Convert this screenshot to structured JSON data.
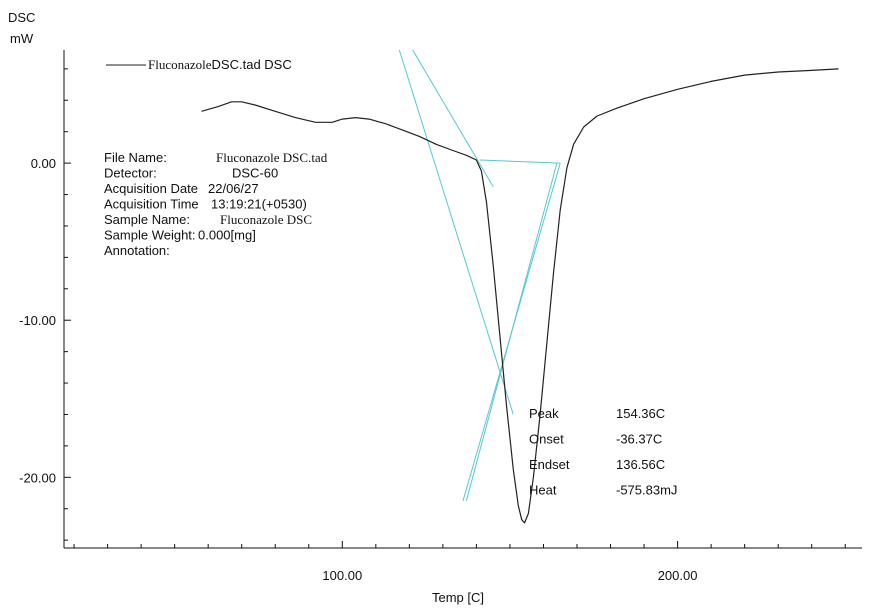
{
  "chart_data": {
    "type": "line",
    "title": "",
    "y_unit_top": "DSC",
    "y_unit_bottom": "mW",
    "xlabel": "Temp [C]",
    "xlim": [
      17,
      255
    ],
    "ylim": [
      -24.5,
      7.2
    ],
    "x_ticks": [
      {
        "value": 100,
        "label": "100.00"
      },
      {
        "value": 200,
        "label": "200.00"
      }
    ],
    "y_ticks": [
      {
        "value": 0,
        "label": "0.00"
      },
      {
        "value": -10,
        "label": "-10.00"
      },
      {
        "value": -20,
        "label": "-20.00"
      }
    ],
    "legend": {
      "series_name_part1": "Fluconazole",
      "series_name_part2": "DSC.tad DSC",
      "placement": "top-left"
    },
    "series": [
      {
        "name": "FluconazoleDSC.tad DSC",
        "color": "#222222",
        "x": [
          58,
          63,
          67,
          70,
          74,
          80,
          86,
          92,
          97,
          100,
          104,
          108,
          113,
          118,
          123,
          128,
          133,
          137,
          140,
          141.5,
          143,
          145,
          147,
          149,
          151,
          152.5,
          153.5,
          154.36,
          155.5,
          157,
          159,
          161,
          163,
          165,
          167,
          169,
          172,
          176,
          182,
          190,
          200,
          210,
          220,
          230,
          240,
          248
        ],
        "y": [
          3.3,
          3.6,
          3.9,
          3.9,
          3.7,
          3.3,
          2.9,
          2.6,
          2.6,
          2.8,
          2.9,
          2.8,
          2.5,
          2.1,
          1.7,
          1.2,
          0.8,
          0.5,
          0.2,
          -0.5,
          -2.5,
          -6.5,
          -11,
          -15.5,
          -19.5,
          -21.8,
          -22.7,
          -22.9,
          -22.3,
          -20,
          -16,
          -11.5,
          -7,
          -3,
          -0.3,
          1.2,
          2.3,
          3.0,
          3.5,
          4.1,
          4.7,
          5.2,
          5.6,
          5.8,
          5.9,
          6.0
        ]
      }
    ],
    "tangent_lines": [
      {
        "color": "#55c8d4",
        "x": [
          117,
          151
        ],
        "y": [
          7.2,
          -16
        ]
      },
      {
        "color": "#55c8d4",
        "x": [
          121,
          145
        ],
        "y": [
          7.2,
          -1.5
        ]
      },
      {
        "color": "#55c8d4",
        "x": [
          141,
          165
        ],
        "y": [
          0.2,
          0.0
        ]
      },
      {
        "color": "#55c8d4",
        "x": [
          165,
          136
        ],
        "y": [
          0.0,
          -21.5
        ]
      },
      {
        "color": "#55c8d4",
        "x": [
          164,
          137
        ],
        "y": [
          0.0,
          -21.5
        ]
      }
    ],
    "info_block": [
      {
        "label": "File Name:",
        "value": "Fluconazole DSC.tad"
      },
      {
        "label": "Detector:",
        "value": "DSC-60"
      },
      {
        "label": "Acquisition Date",
        "value": "22/06/27"
      },
      {
        "label": "Acquisition Time",
        "value": "13:19:21(+0530)"
      },
      {
        "label": "Sample Name:",
        "value": "Fluconazole DSC"
      },
      {
        "label": "Sample Weight:",
        "value": "0.000[mg]"
      },
      {
        "label": "Annotation:",
        "value": ""
      }
    ],
    "results": [
      {
        "label": "Peak",
        "value": "154.36C"
      },
      {
        "label": "Onset",
        "value": "-36.37C"
      },
      {
        "label": "Endset",
        "value": "136.56C"
      },
      {
        "label": "Heat",
        "value": "-575.83mJ"
      }
    ],
    "grid": false
  }
}
